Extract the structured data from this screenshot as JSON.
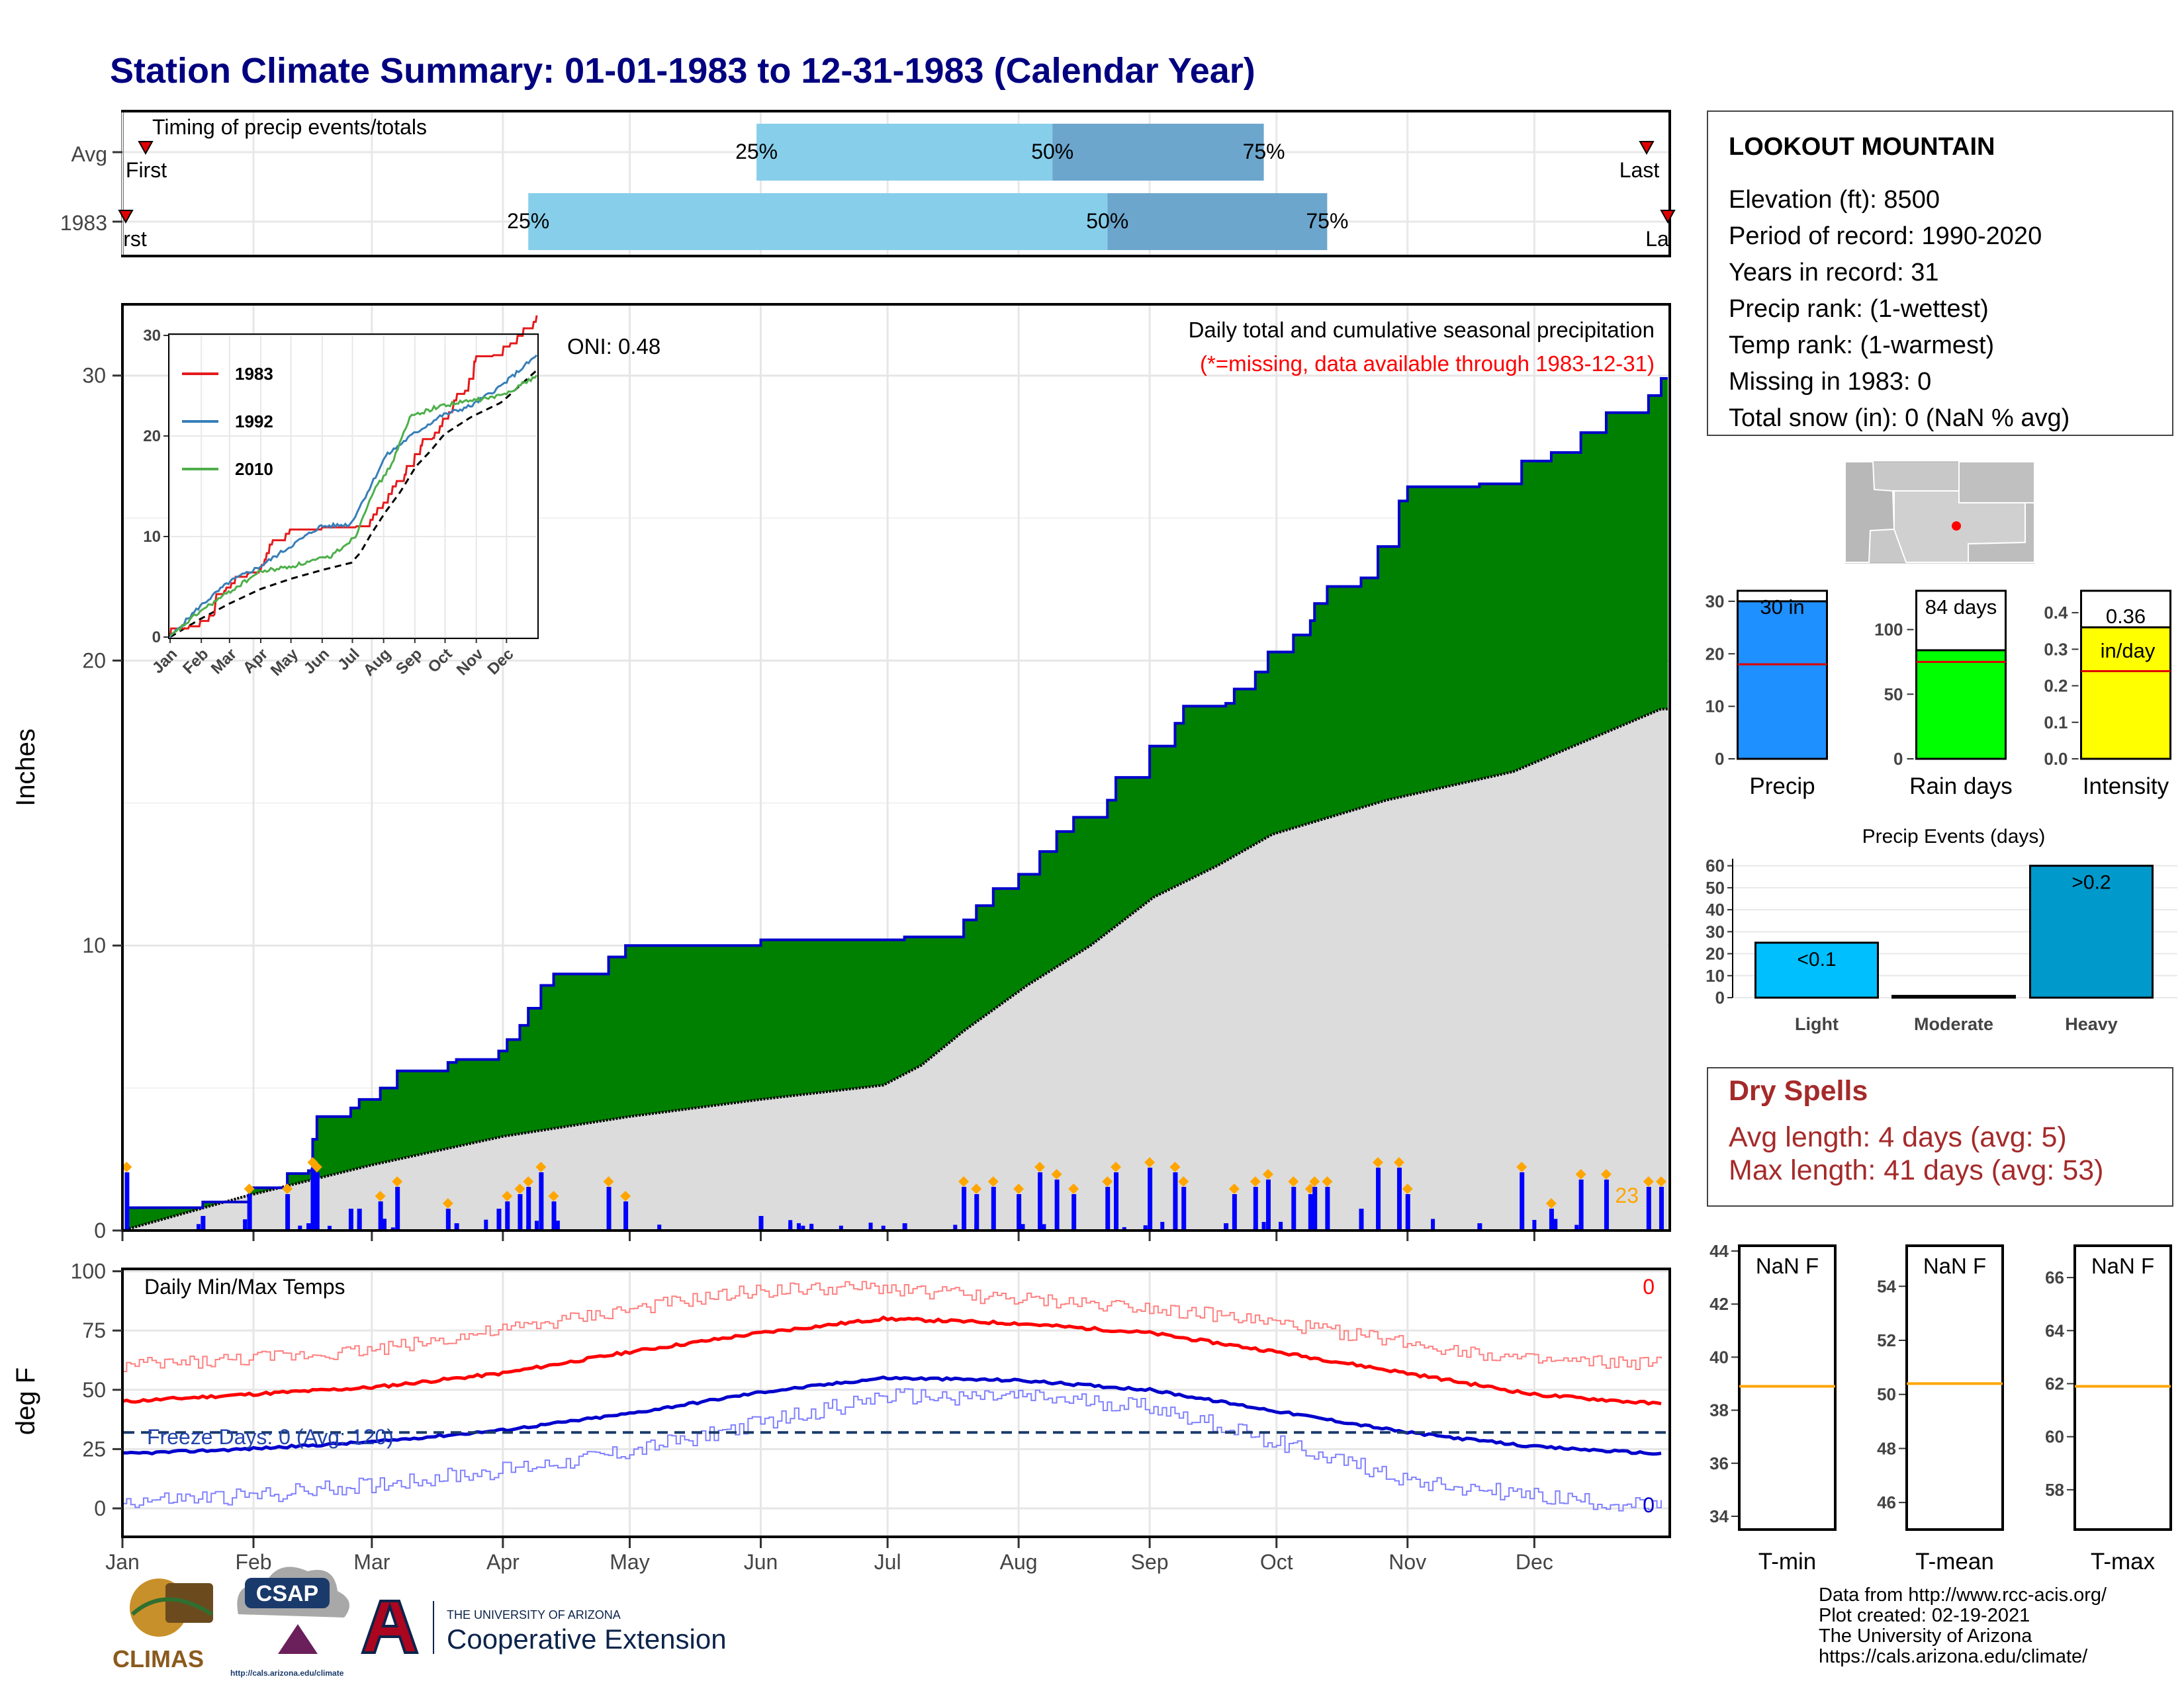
{
  "title": "Station Climate Summary: 01-01-1983 to 12-31-1983 (Calendar Year)",
  "months": [
    "Jan",
    "Feb",
    "Mar",
    "Apr",
    "May",
    "Jun",
    "Jul",
    "Aug",
    "Sep",
    "Oct",
    "Nov",
    "Dec"
  ],
  "timing": {
    "panel_title": "Timing of precip events/totals",
    "row_labels": [
      "Avg",
      "1983"
    ],
    "first_label": "First",
    "last_label": "Last",
    "first_label_cut": "rst",
    "last_label_cut": "La",
    "pct_labels": [
      "25%",
      "50%",
      "75%"
    ]
  },
  "station": {
    "name": "LOOKOUT MOUNTAIN",
    "lines": [
      "Elevation (ft): 8500",
      "Period of record: 1990-2020",
      "Years in record: 31",
      "Precip rank:  (1-wettest)",
      "Temp rank:  (1-warmest)",
      "Missing in 1983: 0",
      "Total snow (in): 0 (NaN % avg)"
    ]
  },
  "precip_panel": {
    "ylabel": "Inches",
    "annotation_title": "Daily total and cumulative seasonal precipitation",
    "annotation_missing": "(*=missing, data available through 1983-12-31)",
    "oni_label": "ONI: 0.48",
    "count_label": "23",
    "colors": {
      "fill_above": "#008000",
      "outline": "#0000CC",
      "avg_fill": "#DCDCDC",
      "daily_bar": "#0000FF",
      "marker": "#FFA500"
    }
  },
  "inset": {
    "legend": [
      "1983",
      "1992",
      "2010"
    ],
    "colors": [
      "#E41A1C",
      "#377EB8",
      "#4DAF4A"
    ],
    "yticks": [
      "0",
      "10",
      "20",
      "30"
    ]
  },
  "bars": {
    "precip": {
      "label": "Precip",
      "value_label": "30 in",
      "yticks": [
        "0",
        "10",
        "20",
        "30"
      ],
      "color": "#1E90FF"
    },
    "raindays": {
      "label": "Rain days",
      "value_label": "84 days",
      "yticks": [
        "0",
        "50",
        "100"
      ],
      "color": "#00FF00"
    },
    "intensity": {
      "label": "Intensity",
      "value_label": "0.36",
      "unit_label": "in/day",
      "yticks": [
        "0.0",
        "0.1",
        "0.2",
        "0.3",
        "0.4"
      ],
      "color": "#FFFF00"
    }
  },
  "events": {
    "title": "Precip Events (days)",
    "categories": [
      "Light",
      "Moderate",
      "Heavy"
    ],
    "labels": [
      "<0.1",
      "",
      ">0.2"
    ],
    "yticks": [
      "0",
      "10",
      "20",
      "30",
      "40",
      "50",
      "60"
    ],
    "colors": [
      "#00BFFF",
      "#1E90FF",
      "#0099CC"
    ]
  },
  "dry_spells": {
    "title": "Dry Spells",
    "avg_line": "Avg length: 4 days (avg: 5)",
    "max_line": "Max length: 41 days (avg: 53)"
  },
  "temp_panel": {
    "ylabel": "deg F",
    "title": "Daily Min/Max Temps",
    "freeze_label": "Freeze Days: 0 (Avg: 120)",
    "hot_count": "0",
    "cold_count": "0",
    "yticks": [
      "0",
      "25",
      "50",
      "75",
      "100"
    ]
  },
  "tbox": {
    "boxes": [
      {
        "label": "T-min",
        "value": "NaN F",
        "yticks": [
          "34",
          "36",
          "38",
          "40",
          "42",
          "44"
        ]
      },
      {
        "label": "T-mean",
        "value": "NaN F",
        "yticks": [
          "46",
          "48",
          "50",
          "52",
          "54"
        ]
      },
      {
        "label": "T-max",
        "value": "NaN F",
        "yticks": [
          "58",
          "60",
          "62",
          "64",
          "66"
        ]
      }
    ]
  },
  "credits": [
    "Data from http://www.rcc-acis.org/",
    "Plot created: 02-19-2021",
    "The University of Arizona",
    "https://cals.arizona.edu/climate/"
  ],
  "logos": {
    "climas": "CLIMAS",
    "csap": "CSAP",
    "csap_url": "http://cals.arizona.edu/climate",
    "ua_small": "THE UNIVERSITY OF ARIZONA",
    "ua_big": "Cooperative Extension"
  },
  "chart_data": [
    {
      "type": "area",
      "title": "Daily total and cumulative seasonal precipitation",
      "ylabel": "Inches",
      "ylim": [
        0,
        32.5
      ],
      "yticks": [
        0,
        10,
        20,
        30
      ],
      "x": [
        "Jan",
        "Feb",
        "Mar",
        "Apr",
        "May",
        "Jun",
        "Jul",
        "Aug",
        "Sep",
        "Oct",
        "Nov",
        "Dec"
      ],
      "series": [
        {
          "name": "1983",
          "cumulative_points": [
            [
              1,
              0
            ],
            [
              2,
              0.8
            ],
            [
              20,
              1.0
            ],
            [
              31,
              1.5
            ],
            [
              40,
              2.0
            ],
            [
              45,
              2.1
            ],
            [
              46,
              3.2
            ],
            [
              47,
              4.0
            ],
            [
              55,
              4.3
            ],
            [
              57,
              4.6
            ],
            [
              62,
              5.0
            ],
            [
              66,
              5.6
            ],
            [
              78,
              5.9
            ],
            [
              80,
              6.0
            ],
            [
              90,
              6.3
            ],
            [
              92,
              6.7
            ],
            [
              95,
              7.2
            ],
            [
              97,
              7.8
            ],
            [
              100,
              8.6
            ],
            [
              103,
              9.0
            ],
            [
              116,
              9.6
            ],
            [
              120,
              10.0
            ],
            [
              151,
              10.0
            ],
            [
              152,
              10.2
            ],
            [
              186,
              10.3
            ],
            [
              200,
              10.9
            ],
            [
              203,
              11.4
            ],
            [
              207,
              12.0
            ],
            [
              213,
              12.5
            ],
            [
              218,
              13.3
            ],
            [
              222,
              14.0
            ],
            [
              226,
              14.5
            ],
            [
              234,
              15.1
            ],
            [
              236,
              15.9
            ],
            [
              244,
              17.0
            ],
            [
              250,
              17.8
            ],
            [
              252,
              18.4
            ],
            [
              262,
              18.5
            ],
            [
              264,
              19.0
            ],
            [
              269,
              19.6
            ],
            [
              272,
              20.3
            ],
            [
              278,
              20.9
            ],
            [
              282,
              21.4
            ],
            [
              283,
              22.0
            ],
            [
              286,
              22.6
            ],
            [
              294,
              22.9
            ],
            [
              298,
              24.0
            ],
            [
              303,
              25.6
            ],
            [
              305,
              26.1
            ],
            [
              322,
              26.2
            ],
            [
              332,
              27.0
            ],
            [
              339,
              27.3
            ],
            [
              346,
              28.0
            ],
            [
              352,
              28.7
            ],
            [
              362,
              29.3
            ],
            [
              365,
              29.9
            ]
          ]
        },
        {
          "name": "Average",
          "cumulative_points": [
            [
              1,
              0
            ],
            [
              30,
              1.2
            ],
            [
              60,
              2.3
            ],
            [
              91,
              3.3
            ],
            [
              121,
              4.0
            ],
            [
              152,
              4.6
            ],
            [
              181,
              5.1
            ],
            [
              190,
              5.8
            ],
            [
              200,
              7.0
            ],
            [
              215,
              8.6
            ],
            [
              230,
              10.0
            ],
            [
              245,
              11.7
            ],
            [
              260,
              12.8
            ],
            [
              273,
              13.9
            ],
            [
              300,
              15.1
            ],
            [
              330,
              16.1
            ],
            [
              365,
              18.3
            ]
          ]
        }
      ]
    },
    {
      "type": "line",
      "title": "Daily Min/Max Temps",
      "ylabel": "deg F",
      "ylim": [
        -12,
        101
      ],
      "x_days": [
        1,
        30,
        60,
        91,
        121,
        152,
        181,
        213,
        244,
        274,
        305,
        335,
        365
      ],
      "series": [
        {
          "name": "Avg max",
          "values": [
            45,
            48,
            51,
            57,
            66,
            74,
            80,
            78,
            74,
            66,
            57,
            48,
            44
          ]
        },
        {
          "name": "Avg min",
          "values": [
            23,
            25,
            28,
            33,
            40,
            49,
            55,
            54,
            50,
            41,
            32,
            26,
            23
          ]
        },
        {
          "name": "Record high",
          "values": [
            60,
            63,
            67,
            75,
            84,
            92,
            93,
            88,
            85,
            78,
            70,
            62,
            61
          ]
        },
        {
          "name": "Record low",
          "values": [
            3,
            5,
            10,
            16,
            24,
            36,
            47,
            47,
            43,
            28,
            12,
            5,
            0
          ]
        }
      ],
      "freeze_line": 32
    },
    {
      "type": "bar",
      "title": "Precip Events (days)",
      "categories": [
        "Light",
        "Moderate",
        "Heavy"
      ],
      "values": [
        25,
        0.8,
        60
      ],
      "ylim": [
        0,
        62
      ]
    },
    {
      "type": "bar",
      "categories": [
        "Precip",
        "Rain days",
        "Intensity"
      ],
      "values": [
        30,
        84,
        0.36
      ],
      "averages": [
        18,
        75,
        0.24
      ]
    }
  ]
}
